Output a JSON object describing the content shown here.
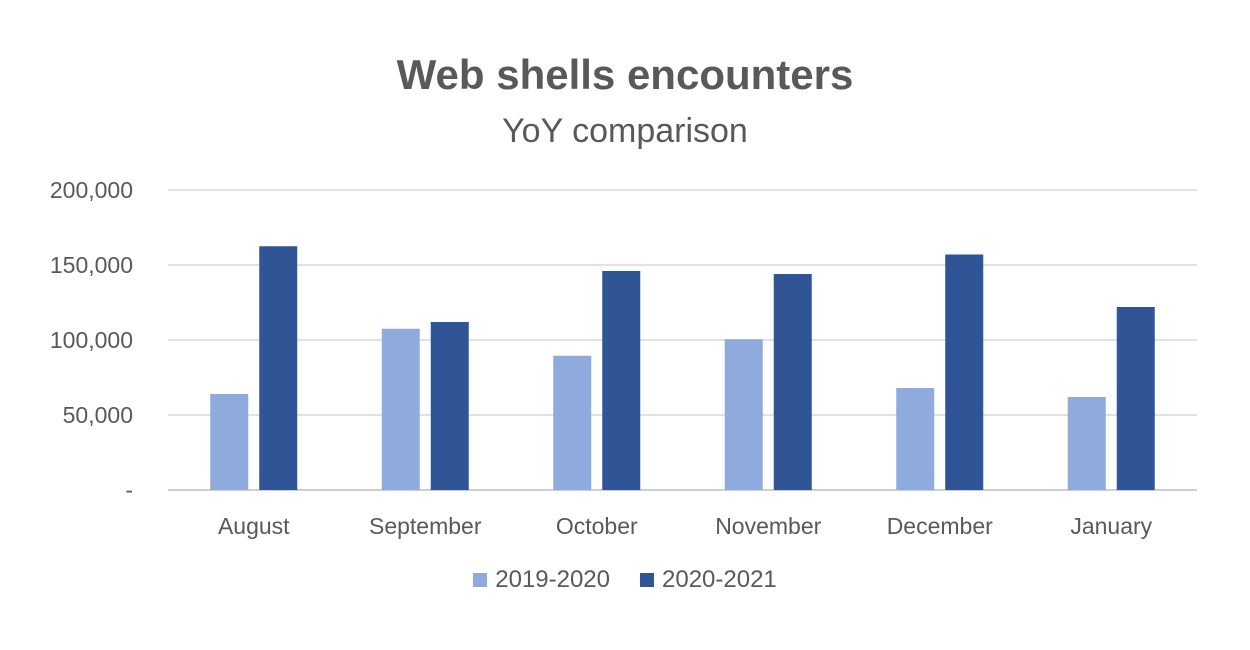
{
  "chart_data": {
    "type": "bar",
    "title": "Web shells encounters",
    "subtitle": "YoY comparison",
    "xlabel": "",
    "ylabel": "",
    "categories": [
      "August",
      "September",
      "October",
      "November",
      "December",
      "January"
    ],
    "series": [
      {
        "name": "2019-2020",
        "color": "#8FAADC",
        "values": [
          64000,
          107500,
          89500,
          100500,
          68000,
          62000
        ]
      },
      {
        "name": "2020-2021",
        "color": "#2F5597",
        "values": [
          162500,
          112000,
          146000,
          144000,
          157000,
          122000
        ]
      }
    ],
    "ylim": [
      0,
      200000
    ],
    "y_ticks": [
      {
        "value": 0,
        "label": "-"
      },
      {
        "value": 50000,
        "label": "50,000"
      },
      {
        "value": 100000,
        "label": "100,000"
      },
      {
        "value": 150000,
        "label": "150,000"
      },
      {
        "value": 200000,
        "label": "200,000"
      }
    ],
    "grid": true,
    "legend_position": "bottom"
  }
}
